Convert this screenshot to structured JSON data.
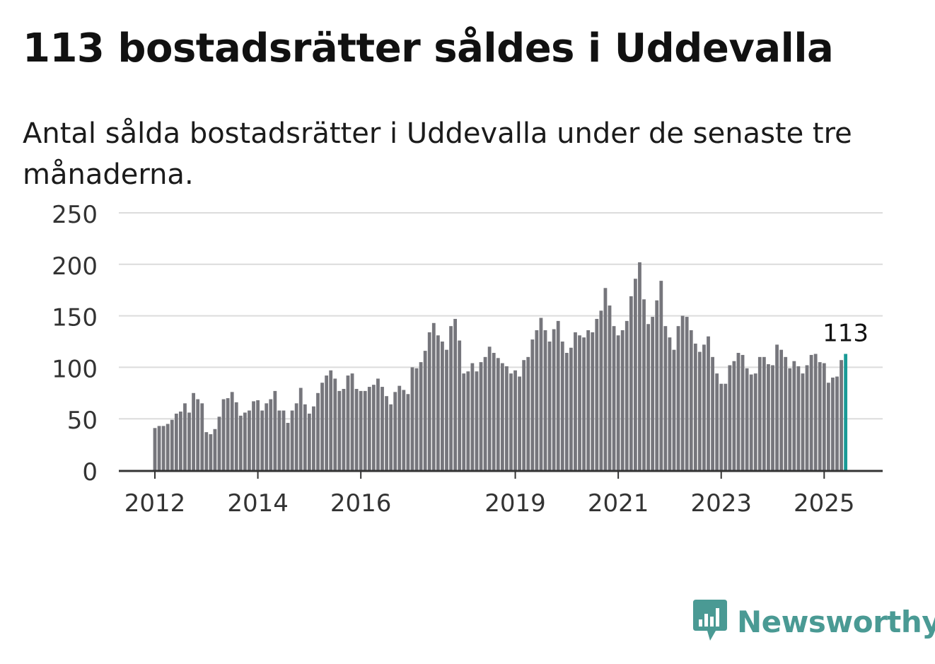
{
  "title": "113 bostadsrätter såldes i Uddevalla",
  "subtitle": "Antal sålda bostadsrätter i Uddevalla under de senaste tre månaderna.",
  "brand": {
    "name": "Newsworthy",
    "color": "#4a9a94"
  },
  "chart_data": {
    "type": "bar",
    "x_start": "2012-01",
    "frequency": "monthly",
    "ylim": [
      0,
      250
    ],
    "y_ticks": [
      0,
      50,
      100,
      150,
      200,
      250
    ],
    "x_ticks": [
      "2012",
      "2014",
      "2016",
      "2019",
      "2021",
      "2023",
      "2025"
    ],
    "grid": true,
    "bar_color": "#76767c",
    "highlight_color": "#1a9a96",
    "highlight_label": "113",
    "values": [
      41,
      43,
      43,
      45,
      49,
      55,
      57,
      65,
      56,
      75,
      69,
      65,
      37,
      35,
      40,
      52,
      69,
      70,
      76,
      66,
      53,
      56,
      58,
      67,
      68,
      58,
      65,
      69,
      77,
      58,
      58,
      46,
      58,
      65,
      80,
      64,
      55,
      62,
      75,
      85,
      92,
      97,
      89,
      77,
      79,
      92,
      94,
      79,
      77,
      77,
      81,
      83,
      89,
      81,
      72,
      64,
      76,
      82,
      78,
      74,
      100,
      99,
      105,
      116,
      134,
      143,
      131,
      125,
      117,
      140,
      147,
      126,
      94,
      96,
      104,
      96,
      105,
      110,
      120,
      114,
      109,
      104,
      101,
      94,
      97,
      91,
      107,
      110,
      127,
      136,
      148,
      136,
      125,
      137,
      145,
      125,
      114,
      119,
      134,
      131,
      129,
      136,
      134,
      147,
      155,
      177,
      160,
      140,
      131,
      136,
      145,
      169,
      186,
      202,
      166,
      142,
      149,
      165,
      184,
      140,
      129,
      117,
      140,
      150,
      149,
      136,
      123,
      115,
      122,
      130,
      110,
      94,
      84,
      84,
      102,
      106,
      114,
      112,
      99,
      93,
      94,
      110,
      110,
      103,
      102,
      122,
      117,
      110,
      99,
      106,
      101,
      94,
      102,
      112,
      113,
      105,
      104,
      85,
      90,
      91,
      107,
      113
    ]
  }
}
